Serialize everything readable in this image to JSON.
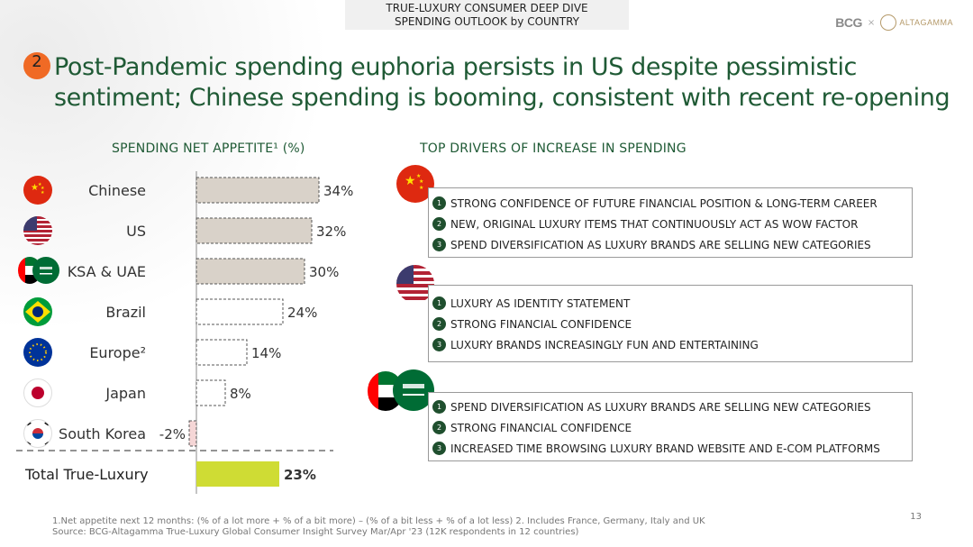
{
  "header": {
    "line1": "TRUE-LUXURY CONSUMER DEEP DIVE",
    "line2": "SPENDING OUTLOOK by COUNTRY"
  },
  "logos": {
    "bcg": "BCG",
    "separator": "×",
    "altagamma": "ALTAGAMMA"
  },
  "section_number": "2",
  "headline": "Post-Pandemic spending euphoria persists in US despite pessimistic sentiment; Chinese spending is booming, consistent with recent re-opening",
  "left_title": "SPENDING NET APPETITE¹ (%)",
  "right_title": "TOP DRIVERS OF INCREASE IN SPENDING",
  "chart_data": {
    "type": "bar",
    "orientation": "horizontal",
    "title": "SPENDING NET APPETITE¹ (%)",
    "categories": [
      "Chinese",
      "US",
      "KSA & UAE",
      "Brazil",
      "Europe²",
      "Japan",
      "South Korea",
      "Total True-Luxury"
    ],
    "values": [
      34,
      32,
      30,
      24,
      14,
      8,
      -2,
      23
    ],
    "data_labels": [
      "34%",
      "32%",
      "30%",
      "24%",
      "14%",
      "8%",
      "-2%",
      "23%"
    ],
    "colors": {
      "high": "#d9d2c9",
      "low": "#ffffff",
      "negative": "#f5d6d6",
      "total": "#cfdc34",
      "axis": "#888888"
    }
  },
  "drivers": [
    {
      "country": "China",
      "items": [
        {
          "num": "1",
          "text": "STRONG CONFIDENCE OF FUTURE FINANCIAL POSITION & LONG-TERM CAREER"
        },
        {
          "num": "2",
          "text": "NEW, ORIGINAL LUXURY ITEMS THAT CONTINUOUSLY ACT AS WOW FACTOR"
        },
        {
          "num": "3",
          "text": "SPEND DIVERSIFICATION AS LUXURY BRANDS ARE SELLING NEW CATEGORIES"
        }
      ]
    },
    {
      "country": "US",
      "items": [
        {
          "num": "1",
          "text": "LUXURY AS IDENTITY STATEMENT"
        },
        {
          "num": "2",
          "text": "STRONG FINANCIAL CONFIDENCE"
        },
        {
          "num": "3",
          "text": "LUXURY BRANDS INCREASINGLY FUN AND ENTERTAINING"
        }
      ]
    },
    {
      "country": "KSA & UAE",
      "items": [
        {
          "num": "1",
          "text": "SPEND DIVERSIFICATION AS LUXURY BRANDS ARE SELLING NEW CATEGORIES"
        },
        {
          "num": "2",
          "text": "STRONG FINANCIAL CONFIDENCE"
        },
        {
          "num": "3",
          "text": "INCREASED TIME BROWSING LUXURY BRAND WEBSITE AND E-COM PLATFORMS"
        }
      ]
    }
  ],
  "footnote": {
    "line1": "1.Net appetite next 12 months: (% of a lot more + % of a bit more) – (% of a bit less + % of a lot less) 2. Includes France, Germany, Italy and UK",
    "line2": "Source: BCG-Altagamma True-Luxury Global Consumer Insight Survey Mar/Apr '23 (12K respondents in 12 countries)"
  },
  "page_number": "13"
}
